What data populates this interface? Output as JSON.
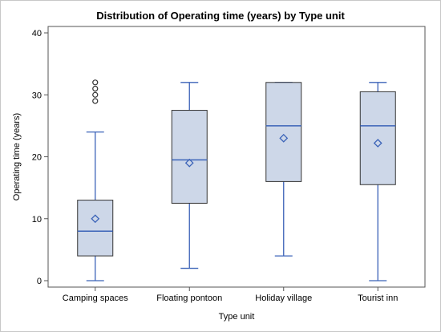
{
  "chart_data": {
    "type": "box",
    "title": "Distribution of Operating time (years) by Type unit",
    "xlabel": "Type unit",
    "ylabel": "Operating time (years)",
    "ylim": [
      0,
      40
    ],
    "yticks": [
      0,
      10,
      20,
      30,
      40
    ],
    "grid": false,
    "categories": [
      "Camping spaces",
      "Floating pontoon",
      "Holiday village",
      "Tourist inn"
    ],
    "boxes": [
      {
        "min": 0,
        "q1": 4,
        "median": 8,
        "q3": 13,
        "max": 24,
        "mean": 10,
        "outliers": [
          29,
          30,
          31,
          32
        ]
      },
      {
        "min": 2,
        "q1": 12.5,
        "median": 19.5,
        "q3": 27.5,
        "max": 32,
        "mean": 19,
        "outliers": []
      },
      {
        "min": 4,
        "q1": 16,
        "median": 25,
        "q3": 32,
        "max": 32,
        "mean": 23,
        "outliers": []
      },
      {
        "min": 0,
        "q1": 15.5,
        "median": 25,
        "q3": 30.5,
        "max": 32,
        "mean": 22.2,
        "outliers": []
      }
    ],
    "colors": {
      "box_fill": "#cdd7e8",
      "box_edge": "#333333",
      "whisker": "#3b63b8",
      "median": "#3b63b8",
      "mean": "#3b63b8",
      "outlier": "#333333"
    }
  }
}
